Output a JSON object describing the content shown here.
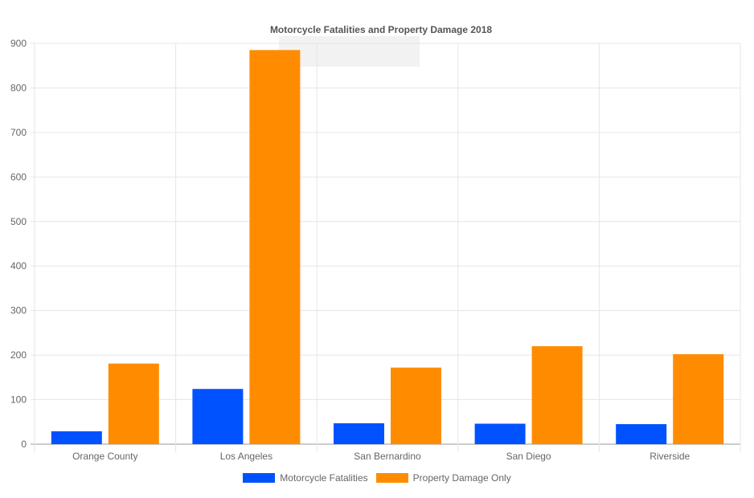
{
  "chart_data": {
    "type": "bar",
    "title": "Motorcycle Fatalities and Property Damage 2018",
    "categories": [
      "Orange County",
      "Los Angeles",
      "San Bernardino",
      "San Diego",
      "Riverside"
    ],
    "series": [
      {
        "name": "Motorcycle Fatalities",
        "color": "#0052ff",
        "values": [
          29,
          124,
          47,
          46,
          45
        ]
      },
      {
        "name": "Property Damage Only",
        "color": "#ff8c00",
        "values": [
          181,
          885,
          172,
          220,
          202
        ]
      }
    ],
    "yticks": [
      "0",
      "100",
      "200",
      "300",
      "400",
      "500",
      "600",
      "700",
      "800",
      "900"
    ],
    "ylim": [
      0,
      900
    ],
    "xlabel": "",
    "ylabel": "",
    "grid": true,
    "legend_position": "bottom"
  }
}
